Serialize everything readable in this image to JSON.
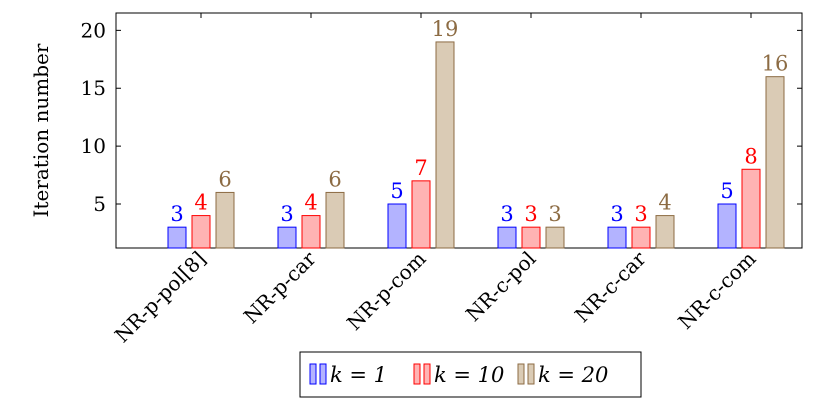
{
  "chart_data": {
    "type": "bar",
    "categories": [
      "NR-p-pol[8]",
      "NR-p-car",
      "NR-p-com",
      "NR-c-pol",
      "NR-c-car",
      "NR-c-com"
    ],
    "series": [
      {
        "name": "k = 1",
        "values": [
          3,
          3,
          5,
          3,
          3,
          5
        ],
        "fill": "#b3b3ff",
        "stroke": "#0000ff",
        "label_color": "#0000ff"
      },
      {
        "name": "k = 10",
        "values": [
          4,
          4,
          7,
          3,
          3,
          8
        ],
        "fill": "#ffb3b3",
        "stroke": "#ff0000",
        "label_color": "#ff0000"
      },
      {
        "name": "k = 20",
        "values": [
          6,
          6,
          19,
          3,
          4,
          16
        ],
        "fill": "#dacbb5",
        "stroke": "#8c6b43",
        "label_color": "#8c6b43"
      }
    ],
    "ylabel": "Iteration number",
    "yticks": [
      5,
      10,
      15,
      20
    ],
    "ylim": [
      1.2,
      21.5
    ],
    "legend_position": "bottom",
    "grid": false
  }
}
